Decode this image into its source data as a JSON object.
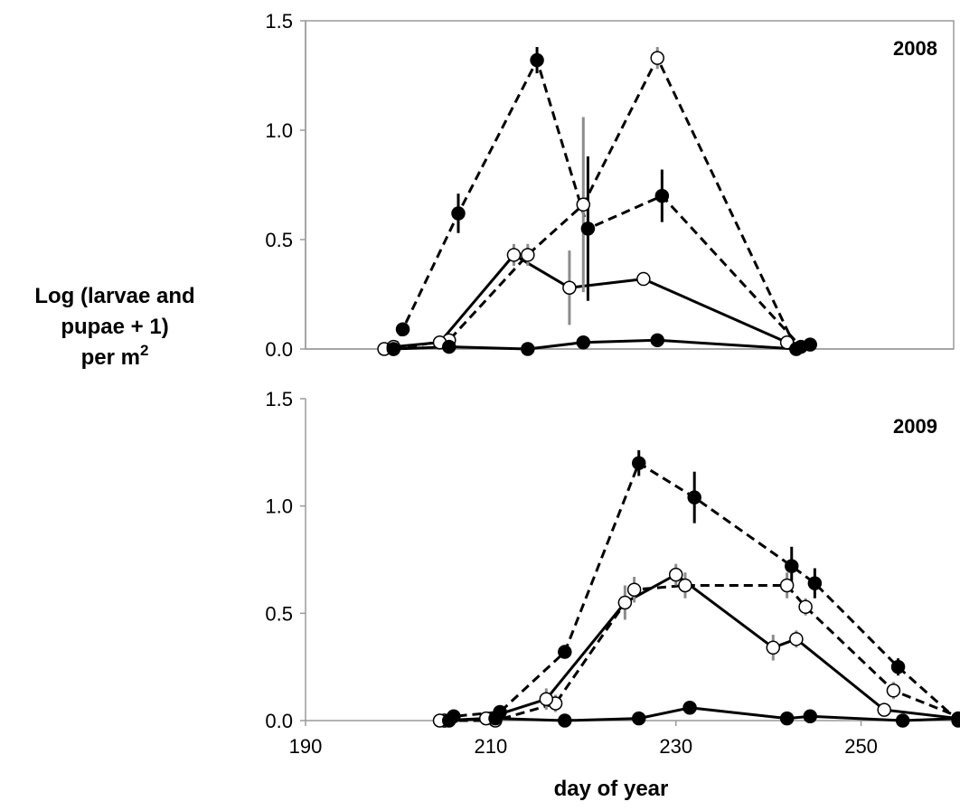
{
  "chart_data": {
    "type": "line",
    "ylabel_lines": [
      "Log (larvae and",
      "pupae + 1)",
      "per m"
    ],
    "ylabel_superscript": "2",
    "xlabel": "day of year",
    "xlim": [
      190,
      260
    ],
    "xticks": [
      "190",
      "210",
      "230",
      "250"
    ],
    "ylim": [
      0,
      1.5
    ],
    "yticks": [
      "0.0",
      "0.5",
      "1.0",
      "1.5"
    ],
    "colors": {
      "black": "#000000",
      "error_gray": "#8c8c8c",
      "axis_gray": "#9a9a9a"
    },
    "panels": [
      {
        "label": "2008",
        "series": [
          {
            "marker": "filled",
            "line": "dashed",
            "points": [
              {
                "x": 199.5,
                "y": 0.0,
                "err": 0.0
              },
              {
                "x": 200.5,
                "y": 0.09,
                "err": 0.0
              },
              {
                "x": 206.5,
                "y": 0.62,
                "err": 0.09
              },
              {
                "x": 215,
                "y": 1.32,
                "err": 0.06
              },
              {
                "x": 220.5,
                "y": 0.55,
                "err": 0.33
              },
              {
                "x": 228.5,
                "y": 0.7,
                "err": 0.12
              },
              {
                "x": 243.5,
                "y": 0.01,
                "err": 0.0
              },
              {
                "x": 244.5,
                "y": 0.02,
                "err": 0.0
              }
            ]
          },
          {
            "marker": "open",
            "line": "dashed",
            "points": [
              {
                "x": 199.5,
                "y": 0.0,
                "err": 0.0
              },
              {
                "x": 205.5,
                "y": 0.04,
                "err": 0.0
              },
              {
                "x": 214,
                "y": 0.43,
                "err": 0.05
              },
              {
                "x": 220,
                "y": 0.66,
                "err": 0.4
              },
              {
                "x": 228,
                "y": 1.33,
                "err": 0.05
              },
              {
                "x": 243,
                "y": 0.0,
                "err": 0.0
              }
            ]
          },
          {
            "marker": "open",
            "line": "solid",
            "points": [
              {
                "x": 198.5,
                "y": 0.0,
                "err": 0.0
              },
              {
                "x": 199.5,
                "y": 0.01,
                "err": 0.0
              },
              {
                "x": 204.5,
                "y": 0.03,
                "err": 0.0
              },
              {
                "x": 212.5,
                "y": 0.43,
                "err": 0.05
              },
              {
                "x": 218.5,
                "y": 0.28,
                "err": 0.17
              },
              {
                "x": 226.5,
                "y": 0.32,
                "err": 0.0
              },
              {
                "x": 242,
                "y": 0.03,
                "err": 0.0
              }
            ]
          },
          {
            "marker": "filled",
            "line": "solid",
            "points": [
              {
                "x": 199.5,
                "y": 0.0,
                "err": 0.0
              },
              {
                "x": 205.5,
                "y": 0.01,
                "err": 0.0
              },
              {
                "x": 214,
                "y": 0.0,
                "err": 0.0
              },
              {
                "x": 220,
                "y": 0.03,
                "err": 0.0
              },
              {
                "x": 228,
                "y": 0.04,
                "err": 0.0
              },
              {
                "x": 243,
                "y": 0.0,
                "err": 0.0
              }
            ]
          }
        ]
      },
      {
        "label": "2009",
        "series": [
          {
            "marker": "filled",
            "line": "dashed",
            "points": [
              {
                "x": 205,
                "y": 0.0,
                "err": 0.0
              },
              {
                "x": 206,
                "y": 0.02,
                "err": 0.0
              },
              {
                "x": 211,
                "y": 0.04,
                "err": 0.0
              },
              {
                "x": 218,
                "y": 0.32,
                "err": 0.0
              },
              {
                "x": 226,
                "y": 1.2,
                "err": 0.06
              },
              {
                "x": 232,
                "y": 1.04,
                "err": 0.12
              },
              {
                "x": 242.5,
                "y": 0.72,
                "err": 0.09
              },
              {
                "x": 245,
                "y": 0.64,
                "err": 0.07
              },
              {
                "x": 254,
                "y": 0.25,
                "err": 0.04
              },
              {
                "x": 260.5,
                "y": 0.0,
                "err": 0.0
              }
            ]
          },
          {
            "marker": "open",
            "line": "dashed",
            "points": [
              {
                "x": 205,
                "y": 0.0,
                "err": 0.0
              },
              {
                "x": 210.5,
                "y": 0.0,
                "err": 0.0
              },
              {
                "x": 217,
                "y": 0.08,
                "err": 0.04
              },
              {
                "x": 225.5,
                "y": 0.61,
                "err": 0.06
              },
              {
                "x": 231,
                "y": 0.63,
                "err": 0.06
              },
              {
                "x": 242,
                "y": 0.63,
                "err": 0.06
              },
              {
                "x": 244,
                "y": 0.53,
                "err": 0.04
              },
              {
                "x": 253.5,
                "y": 0.14,
                "err": 0.04
              },
              {
                "x": 261,
                "y": 0.01,
                "err": 0.0
              }
            ]
          },
          {
            "marker": "open",
            "line": "solid",
            "points": [
              {
                "x": 204.5,
                "y": 0.0,
                "err": 0.0
              },
              {
                "x": 209.5,
                "y": 0.01,
                "err": 0.0
              },
              {
                "x": 216,
                "y": 0.1,
                "err": 0.05
              },
              {
                "x": 224.5,
                "y": 0.55,
                "err": 0.08
              },
              {
                "x": 230,
                "y": 0.68,
                "err": 0.05
              },
              {
                "x": 240.5,
                "y": 0.34,
                "err": 0.06
              },
              {
                "x": 243,
                "y": 0.38,
                "err": 0.04
              },
              {
                "x": 252.5,
                "y": 0.05,
                "err": 0.0
              },
              {
                "x": 260.5,
                "y": 0.01,
                "err": 0.0
              }
            ]
          },
          {
            "marker": "filled",
            "line": "solid",
            "points": [
              {
                "x": 205.5,
                "y": 0.0,
                "err": 0.0
              },
              {
                "x": 210.5,
                "y": 0.01,
                "err": 0.0
              },
              {
                "x": 218,
                "y": 0.0,
                "err": 0.0
              },
              {
                "x": 226,
                "y": 0.01,
                "err": 0.0
              },
              {
                "x": 231.5,
                "y": 0.06,
                "err": 0.0
              },
              {
                "x": 242,
                "y": 0.01,
                "err": 0.0
              },
              {
                "x": 244.5,
                "y": 0.02,
                "err": 0.0
              },
              {
                "x": 254.5,
                "y": 0.0,
                "err": 0.0
              },
              {
                "x": 260.5,
                "y": 0.01,
                "err": 0.0
              }
            ]
          }
        ]
      }
    ]
  }
}
